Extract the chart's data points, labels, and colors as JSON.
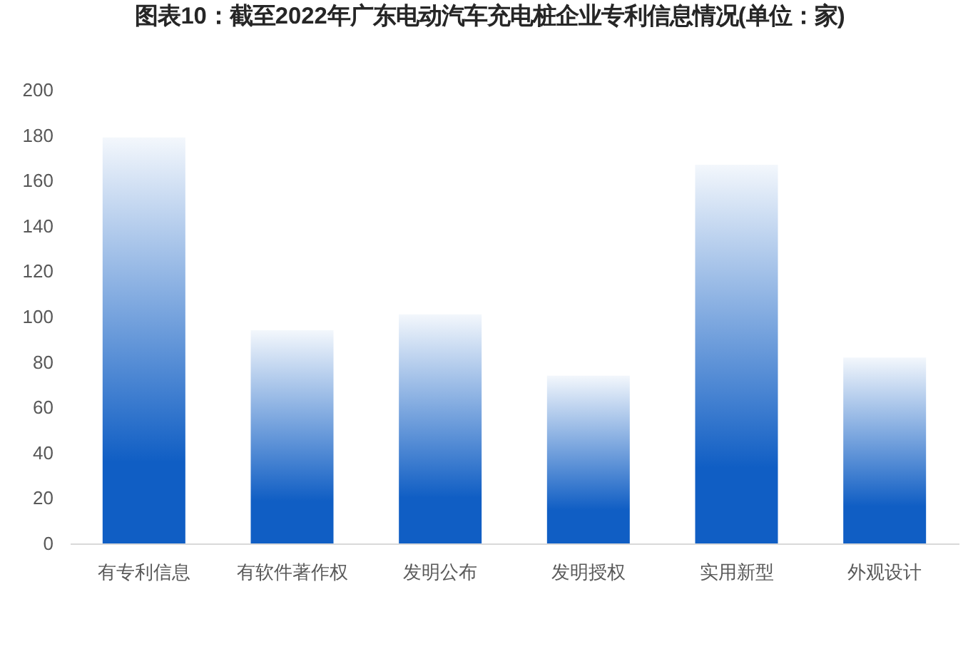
{
  "chart_data": {
    "type": "bar",
    "title": "图表10：截至2022年广东电动汽车充电桩企业专利信息情况(单位：家)",
    "categories": [
      "有专利信息",
      "有软件著作权",
      "发明公布",
      "发明授权",
      "实用新型",
      "外观设计"
    ],
    "values": [
      179,
      94,
      101,
      74,
      167,
      82
    ],
    "color": "#105ec4",
    "ylim": [
      0,
      200
    ],
    "yticks": [
      0,
      20,
      40,
      60,
      80,
      100,
      120,
      140,
      160,
      180,
      200
    ],
    "grid": false
  }
}
